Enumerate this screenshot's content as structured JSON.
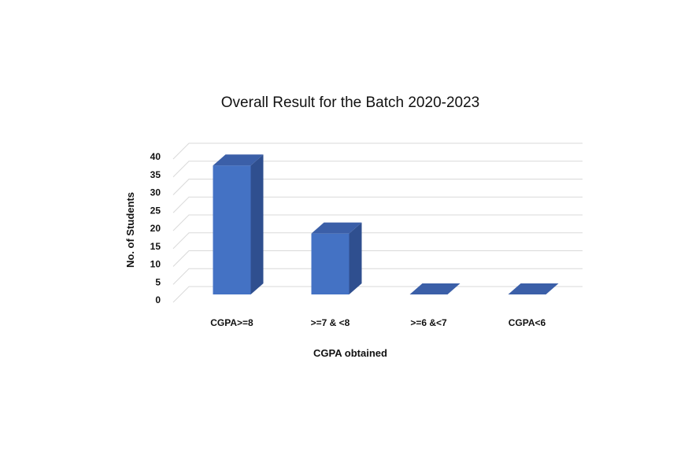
{
  "chart_data": {
    "type": "bar",
    "title": "Overall Result for the Batch 2020-2023",
    "xlabel": "CGPA obtained",
    "ylabel": "No. of Students",
    "categories": [
      "CGPA>=8",
      ">=7 & <8",
      ">=6 &<7",
      "CGPA<6"
    ],
    "values": [
      36,
      17,
      0,
      0
    ],
    "ylim": [
      0,
      40
    ],
    "yticks": [
      0,
      5,
      10,
      15,
      20,
      25,
      30,
      35,
      40
    ],
    "grid": true,
    "legend": "none",
    "style": "3d-column",
    "colors": {
      "bar_front": "#4472C4",
      "bar_side": "#2F4F8F",
      "bar_top": "#3B5FA8",
      "grid": "#D9D9D9"
    }
  }
}
